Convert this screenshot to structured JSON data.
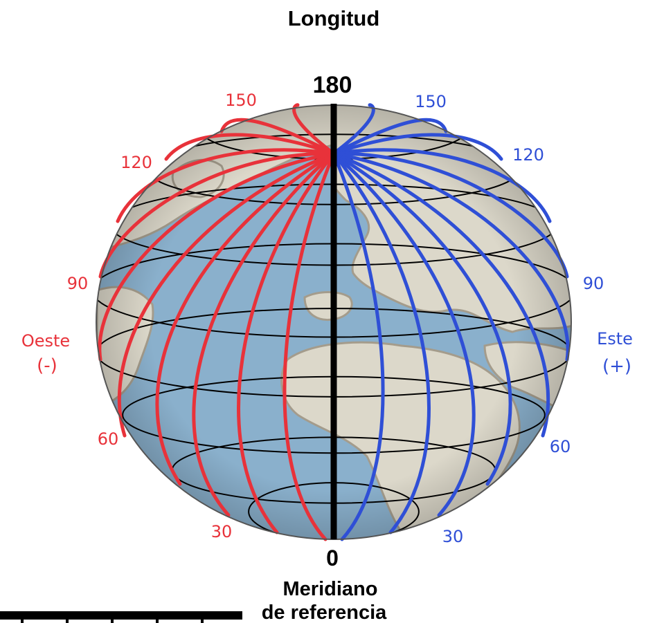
{
  "title": "Longitud",
  "top_meridian_label": "180",
  "bottom_meridian_label": "0",
  "reference_label_line1": "Meridiano",
  "reference_label_line2": "de referencia",
  "west": {
    "name": "Oeste",
    "sign": "(-)",
    "color": "#e8323a",
    "degree_labels": [
      "150",
      "120",
      "90",
      "60",
      "30"
    ]
  },
  "east": {
    "name": "Este",
    "sign": "(+)",
    "color": "#2f4fd6",
    "degree_labels": [
      "150",
      "120",
      "90",
      "60",
      "30"
    ]
  },
  "colors": {
    "ocean": "#8ab0cc",
    "land": "#dcd8ca",
    "coast": "#a49c8c",
    "grid": "#000000",
    "meridian": "#000000"
  }
}
